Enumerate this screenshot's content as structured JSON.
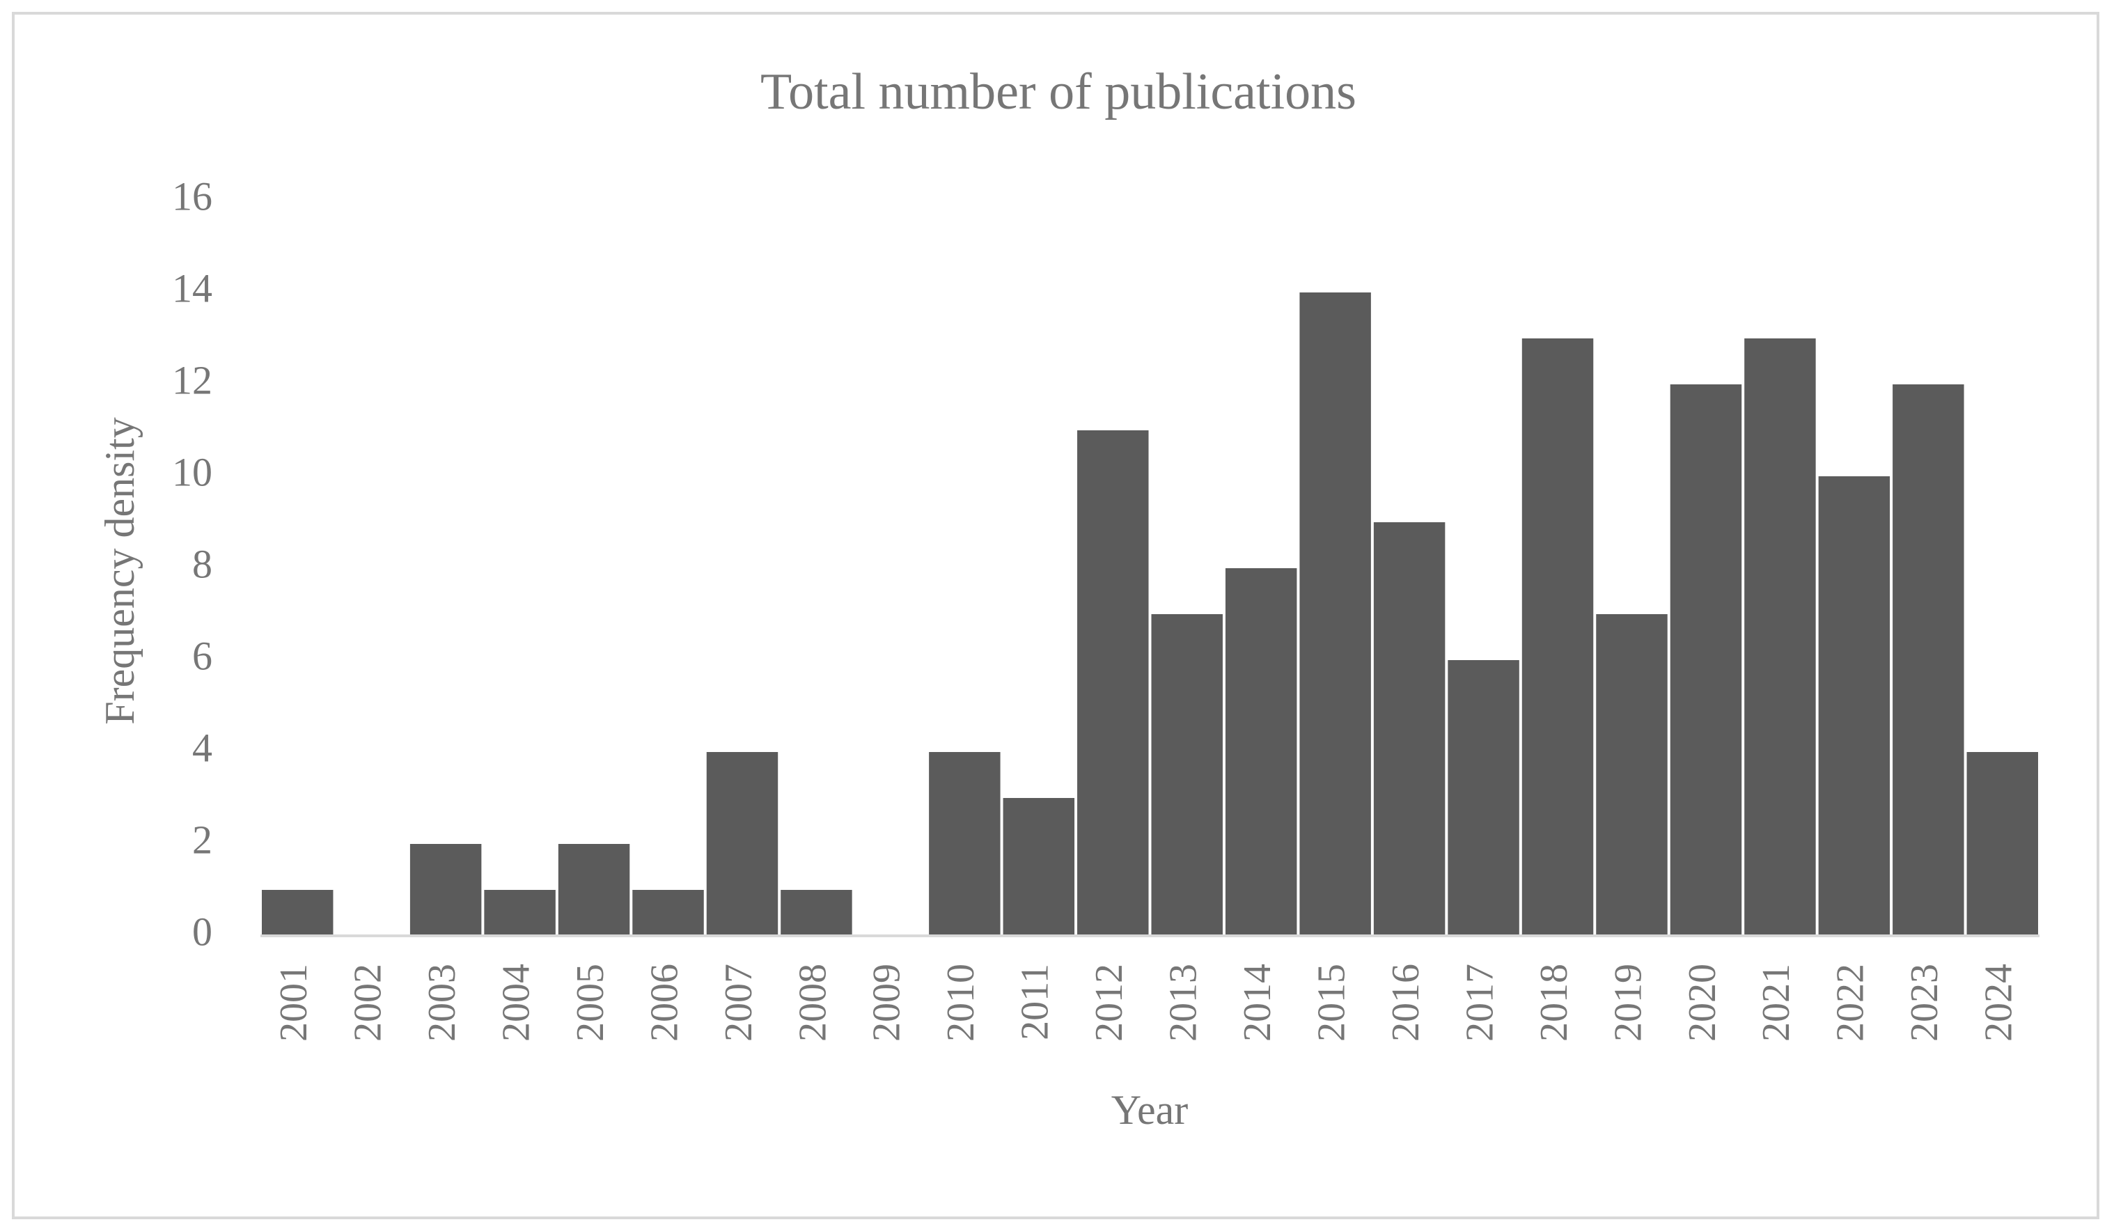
{
  "chart_data": {
    "type": "bar",
    "title": "Total number of publications",
    "x_label": "Year",
    "y_label": "Frequency density",
    "categories": [
      "2001",
      "2002",
      "2003",
      "2004",
      "2005",
      "2006",
      "2007",
      "2008",
      "2009",
      "2010",
      "2011",
      "2012",
      "2013",
      "2014",
      "2015",
      "2016",
      "2017",
      "2018",
      "2019",
      "2020",
      "2021",
      "2022",
      "2023",
      "2024"
    ],
    "values": [
      1,
      0,
      2,
      1,
      2,
      1,
      4,
      1,
      0,
      4,
      3,
      11,
      7,
      8,
      14,
      9,
      6,
      13,
      7,
      12,
      13,
      10,
      12,
      4
    ],
    "color": "#5b5b5b",
    "ylim": [
      0,
      16
    ],
    "yticks": [
      0,
      2,
      4,
      6,
      8,
      10,
      12,
      14,
      16
    ],
    "grid": false
  }
}
